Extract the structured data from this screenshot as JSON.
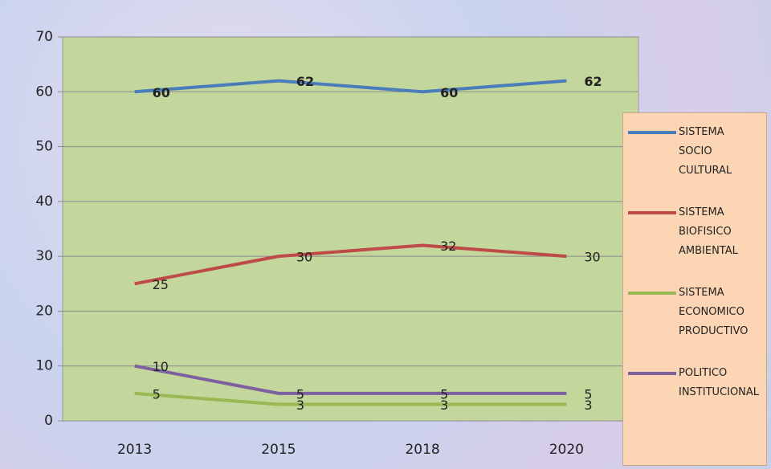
{
  "chart_data": {
    "type": "line",
    "categories": [
      "2013",
      "2015",
      "2018",
      "2020"
    ],
    "series": [
      {
        "name": "SISTEMA SOCIO CULTURAL",
        "color": "#4a7ebb",
        "values": [
          60,
          62,
          60,
          62
        ]
      },
      {
        "name": "SISTEMA BIOFISICO AMBIENTAL",
        "color": "#be4b48",
        "values": [
          25,
          30,
          32,
          30
        ]
      },
      {
        "name": "SISTEMA ECONOMICO PRODUCTIVO",
        "color": "#98b954",
        "values": [
          5,
          3,
          3,
          3
        ]
      },
      {
        "name": "POLITICO INSTITUCIONAL",
        "color": "#7d60a0",
        "values": [
          10,
          5,
          5,
          5
        ]
      }
    ],
    "ylim": [
      0,
      70
    ],
    "yticks": [
      0,
      10,
      20,
      30,
      40,
      50,
      60,
      70
    ],
    "grid": true,
    "legend": "right"
  }
}
